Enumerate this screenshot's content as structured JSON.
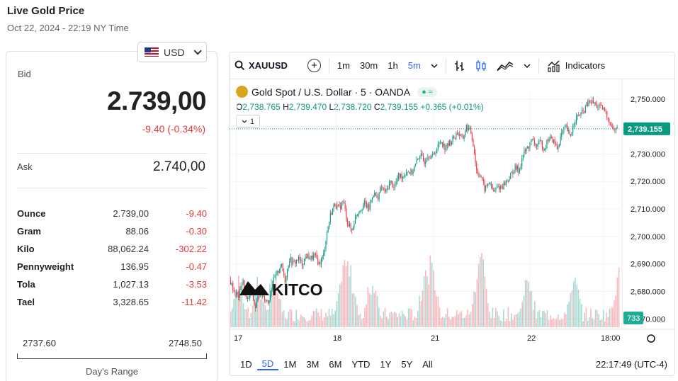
{
  "header": {
    "title": "Live Gold Price",
    "timestamp": "Oct 22, 2024 - 22:19 NY Time"
  },
  "currency": {
    "selected": "USD",
    "flag": "us-flag-icon"
  },
  "quote": {
    "bid_label": "Bid",
    "bid": "2.739,00",
    "change": "-9.40 (-0.34%)",
    "ask_label": "Ask",
    "ask": "2.740,00"
  },
  "units": [
    {
      "name": "Ounce",
      "price": "2.739,00",
      "change": "-9.40"
    },
    {
      "name": "Gram",
      "price": "88.06",
      "change": "-0.30"
    },
    {
      "name": "Kilo",
      "price": "88,062.24",
      "change": "-302.22"
    },
    {
      "name": "Pennyweight",
      "price": "136.95",
      "change": "-0.47"
    },
    {
      "name": "Tola",
      "price": "1,027.13",
      "change": "-3.53"
    },
    {
      "name": "Tael",
      "price": "3,328.65",
      "change": "-11.42"
    }
  ],
  "range": {
    "low": "2737.60",
    "high": "2748.50",
    "label": "Day's Range"
  },
  "chart": {
    "symbol": "XAUUSD",
    "intervals": [
      "1m",
      "30m",
      "1h",
      "5m"
    ],
    "active_interval": "5m",
    "indicators_label": "Indicators",
    "legend_title": "Gold Spot / U.S. Dollar · 5 · OANDA",
    "ohlc": {
      "o": "2,738.765",
      "h": "2,739.470",
      "l": "2,738.720",
      "c": "2,739.155",
      "chg": "+0.365 (+0.01%)"
    },
    "collapse_label": "1",
    "watermark": "KITCO",
    "last_price": "2,739.155",
    "volume_badge": "733",
    "ranges": [
      "1D",
      "5D",
      "1M",
      "3M",
      "6M",
      "YTD",
      "1Y",
      "5Y",
      "All"
    ],
    "active_range": "5D",
    "clock": "22:17:49 (UTC-4)"
  },
  "chart_data": {
    "type": "candlestick",
    "y_ticks": [
      "2,750.000",
      "2,740.000",
      "2,730.000",
      "2,720.000",
      "2,710.000",
      "2,700.000",
      "2,690.000",
      "2,680.000",
      "2,670.000"
    ],
    "x_ticks": [
      "17",
      "18",
      "21",
      "22",
      "18:00"
    ],
    "ylim": [
      2667,
      2752
    ],
    "up_color": "#089981",
    "down_color": "#f23645",
    "path": [
      [
        0,
        2684
      ],
      [
        6,
        2680
      ],
      [
        12,
        2678
      ],
      [
        18,
        2684
      ],
      [
        24,
        2676
      ],
      [
        30,
        2680
      ],
      [
        36,
        2674
      ],
      [
        42,
        2680
      ],
      [
        48,
        2678
      ],
      [
        54,
        2676
      ],
      [
        60,
        2683
      ],
      [
        66,
        2686
      ],
      [
        72,
        2690
      ],
      [
        78,
        2684
      ],
      [
        84,
        2692
      ],
      [
        90,
        2690
      ],
      [
        96,
        2692
      ],
      [
        102,
        2690
      ],
      [
        108,
        2693
      ],
      [
        114,
        2692
      ],
      [
        120,
        2693
      ],
      [
        126,
        2690
      ],
      [
        132,
        2693
      ],
      [
        136,
        2700
      ],
      [
        142,
        2708
      ],
      [
        148,
        2712
      ],
      [
        154,
        2710
      ],
      [
        160,
        2713
      ],
      [
        166,
        2705
      ],
      [
        172,
        2702
      ],
      [
        178,
        2708
      ],
      [
        184,
        2710
      ],
      [
        190,
        2712
      ],
      [
        196,
        2710
      ],
      [
        202,
        2716
      ],
      [
        208,
        2714
      ],
      [
        214,
        2718
      ],
      [
        220,
        2716
      ],
      [
        226,
        2720
      ],
      [
        232,
        2718
      ],
      [
        238,
        2722
      ],
      [
        244,
        2722
      ],
      [
        250,
        2724
      ],
      [
        256,
        2723
      ],
      [
        262,
        2726
      ],
      [
        268,
        2730
      ],
      [
        274,
        2727
      ],
      [
        280,
        2730
      ],
      [
        286,
        2729
      ],
      [
        292,
        2732
      ],
      [
        298,
        2735
      ],
      [
        304,
        2732
      ],
      [
        310,
        2734
      ],
      [
        316,
        2736
      ],
      [
        322,
        2738
      ],
      [
        328,
        2735
      ],
      [
        334,
        2740
      ],
      [
        340,
        2738
      ],
      [
        344,
        2733
      ],
      [
        348,
        2724
      ],
      [
        354,
        2722
      ],
      [
        360,
        2717
      ],
      [
        366,
        2720
      ],
      [
        372,
        2716
      ],
      [
        378,
        2718
      ],
      [
        384,
        2718
      ],
      [
        390,
        2720
      ],
      [
        396,
        2722
      ],
      [
        402,
        2725
      ],
      [
        408,
        2724
      ],
      [
        414,
        2730
      ],
      [
        420,
        2732
      ],
      [
        426,
        2735
      ],
      [
        432,
        2733
      ],
      [
        438,
        2734
      ],
      [
        444,
        2732
      ],
      [
        450,
        2736
      ],
      [
        456,
        2735
      ],
      [
        462,
        2732
      ],
      [
        468,
        2737
      ],
      [
        474,
        2740
      ],
      [
        480,
        2736
      ],
      [
        486,
        2742
      ],
      [
        492,
        2744
      ],
      [
        498,
        2745
      ],
      [
        504,
        2748
      ],
      [
        510,
        2749
      ],
      [
        516,
        2748
      ],
      [
        522,
        2747
      ],
      [
        528,
        2746
      ],
      [
        534,
        2743
      ],
      [
        540,
        2739
      ],
      [
        546,
        2739
      ]
    ]
  }
}
